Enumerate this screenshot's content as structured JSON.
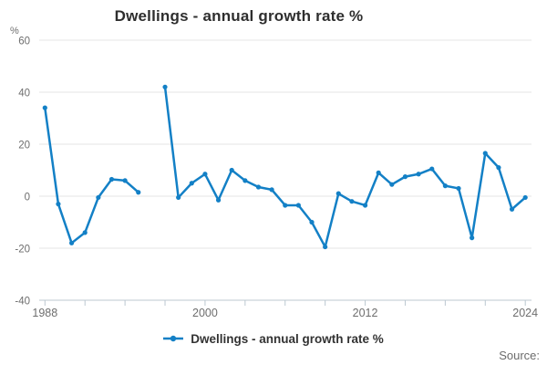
{
  "title": "Dwellings - annual growth rate %",
  "source_label": "Source:",
  "legend": {
    "label": "Dwellings - annual growth rate %"
  },
  "y_axis": {
    "unit_label": "%",
    "ticks": [
      60,
      40,
      20,
      0,
      -20,
      -40
    ]
  },
  "x_axis": {
    "tick_years": [
      1988,
      1991,
      1994,
      1997,
      2000,
      2003,
      2006,
      2009,
      2012,
      2015,
      2018,
      2021,
      2024
    ],
    "labeled_years": [
      1988,
      2000,
      2012,
      2024
    ]
  },
  "colors": {
    "line": "#1380c6",
    "grid": "#e4e4e4",
    "axis": "#bcc8d1",
    "muted_text": "#6e6e6e",
    "title_text": "#2e2e2e",
    "legend_text": "#333333"
  },
  "chart_data": {
    "type": "line",
    "title": "Dwellings - annual growth rate %",
    "xlabel": "",
    "ylabel": "%",
    "ylim": [
      -40,
      60
    ],
    "xlim": [
      1988,
      2024
    ],
    "grid": true,
    "legend_position": "bottom",
    "x": [
      1988,
      1989,
      1990,
      1991,
      1992,
      1993,
      1994,
      1995,
      1996,
      1997,
      1998,
      1999,
      2000,
      2001,
      2002,
      2003,
      2004,
      2005,
      2006,
      2007,
      2008,
      2009,
      2010,
      2011,
      2012,
      2013,
      2014,
      2015,
      2016,
      2017,
      2018,
      2019,
      2020,
      2021,
      2022,
      2023,
      2024
    ],
    "series": [
      {
        "name": "Dwellings - annual growth rate %",
        "values": [
          34,
          -3,
          -18,
          -14,
          -0.5,
          6.5,
          6,
          1.5,
          null,
          42,
          -0.5,
          5,
          8.5,
          -1.5,
          10,
          6,
          3.5,
          2.5,
          -3.5,
          -3.5,
          -10,
          -19.5,
          1,
          -2,
          -3.5,
          9,
          4.5,
          7.5,
          8.5,
          10.5,
          4,
          3,
          -16,
          16.5,
          11,
          -5,
          -0.5
        ]
      }
    ],
    "missing_x": [
      1996
    ]
  }
}
